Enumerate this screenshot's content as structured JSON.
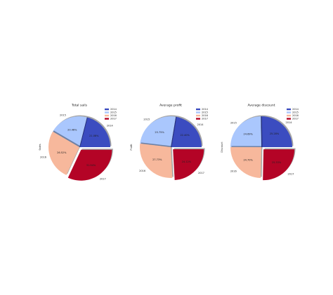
{
  "chart_data": [
    {
      "type": "pie",
      "title": "Total sails",
      "ylabel": "Sales",
      "categories": [
        "2014",
        "2015",
        "2016",
        "2017"
      ],
      "values": [
        21.08,
        20.46,
        26.52,
        31.94
      ],
      "value_labels": [
        "21.08%",
        "20.46%",
        "26.52%",
        "31.94%"
      ],
      "colors": [
        "#3b4cc0",
        "#aac7fd",
        "#f7b89c",
        "#b40426"
      ],
      "explode": [
        0,
        0,
        0,
        0.1
      ],
      "shadow": true,
      "legend": "upper right"
    },
    {
      "type": "pie",
      "title": "Average profit",
      "ylabel": "Profit",
      "categories": [
        "2014",
        "2015",
        "2016",
        "2017"
      ],
      "values": [
        22.4,
        25.75,
        27.73,
        24.12
      ],
      "value_labels": [
        "22.40%",
        "25.75%",
        "27.73%",
        "24.12%"
      ],
      "colors": [
        "#3b4cc0",
        "#aac7fd",
        "#f7b89c",
        "#b40426"
      ],
      "explode": [
        0,
        0,
        0,
        0.1
      ],
      "shadow": true,
      "legend": "upper right"
    },
    {
      "type": "pie",
      "title": "Average discount",
      "ylabel": "Discount",
      "categories": [
        "2014",
        "2015",
        "2016",
        "2017"
      ],
      "values": [
        25.28,
        24.69,
        24.7,
        25.33
      ],
      "value_labels": [
        "25.28%",
        "24.69%",
        "24.70%",
        "25.33%"
      ],
      "colors": [
        "#3b4cc0",
        "#aac7fd",
        "#f7b89c",
        "#b40426"
      ],
      "explode": [
        0,
        0,
        0,
        0.1
      ],
      "shadow": true,
      "legend": "upper right"
    }
  ]
}
